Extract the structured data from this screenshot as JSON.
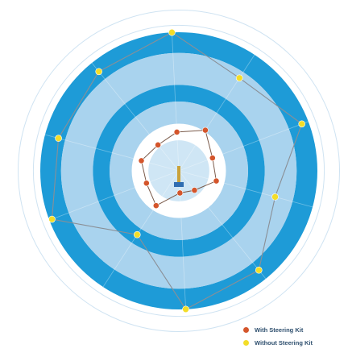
{
  "chart_data": {
    "type": "radar",
    "title": "",
    "axes_count": 10,
    "radial_ticks": [
      "",
      "",
      "",
      "",
      "",
      "",
      "",
      ""
    ],
    "outer_labels": [
      "",
      ""
    ],
    "series": [
      {
        "name": "With Steering Kit",
        "color": "#d4552b",
        "values": [
          0.28,
          0.35,
          0.26,
          0.28,
          0.18,
          0.16,
          0.3,
          0.25,
          0.28,
          0.24
        ]
      },
      {
        "name": "Without Steering Kit",
        "color": "#f3dd28",
        "values": [
          1.0,
          0.8,
          0.95,
          0.72,
          0.92,
          1.0,
          0.55,
          0.98,
          0.9,
          0.92
        ]
      }
    ],
    "rings": [
      {
        "inner": 0.85,
        "outer": 1.0,
        "color": "#1e9bd7"
      },
      {
        "inner": 0.62,
        "outer": 0.85,
        "color": "#a9d3ee"
      },
      {
        "inner": 0.5,
        "outer": 0.62,
        "color": "#1e9bd7"
      },
      {
        "inner": 0.34,
        "outer": 0.5,
        "color": "#a9d3ee"
      },
      {
        "inner": 0.0,
        "outer": 0.22,
        "color": "#cfe6f5"
      }
    ],
    "grid": true,
    "legend_position": "bottom-right"
  },
  "legend": {
    "items": [
      {
        "label": "With Steering Kit",
        "color": "#d4552b"
      },
      {
        "label": "Without Steering Kit",
        "color": "#f3dd28"
      }
    ]
  }
}
